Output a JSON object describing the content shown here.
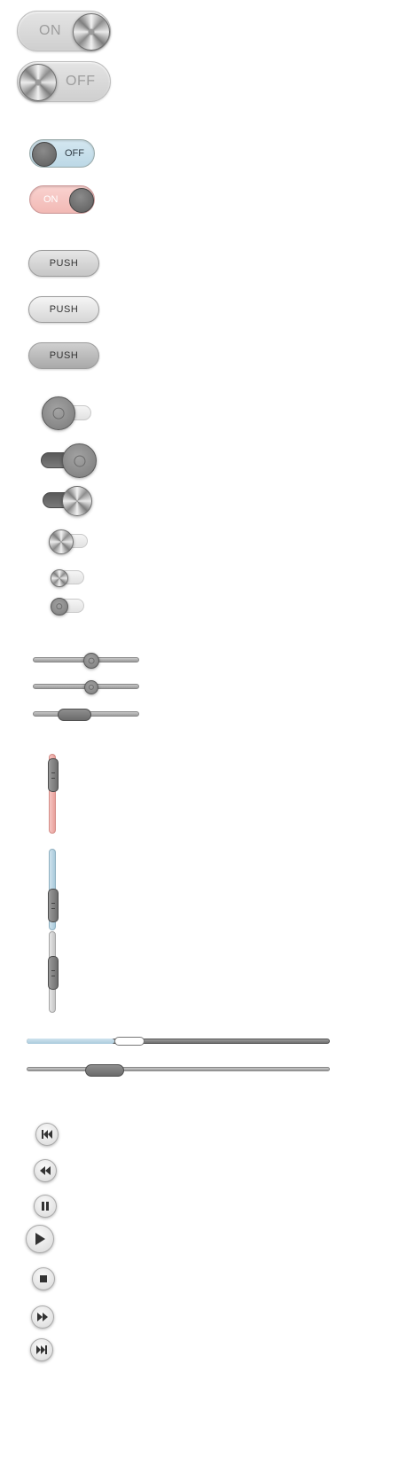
{
  "big_toggles": {
    "on_label": "ON",
    "off_label": "OFF"
  },
  "color_toggles": {
    "off_label": "OFF",
    "on_label": "ON",
    "off_color": "#c9e0ea",
    "on_color": "#f6c4c0"
  },
  "push_buttons": [
    {
      "label": "PUSH"
    },
    {
      "label": "PUSH"
    },
    {
      "label": "PUSH"
    }
  ],
  "colors": {
    "accent_blue": "#bcd8e6",
    "accent_pink": "#f2b9b5"
  },
  "sliders": {
    "horizontal": [
      {
        "kind": "knob",
        "value": 0.55
      },
      {
        "kind": "knob-small",
        "value": 0.55
      },
      {
        "kind": "pill",
        "value": 0.33
      }
    ],
    "vertical": [
      {
        "color": "pink",
        "value": 0.9
      },
      {
        "color": "blue",
        "value": 0.2
      },
      {
        "color": "grey",
        "value": 0.5
      }
    ]
  },
  "progress": {
    "buffer_fraction": 0.29,
    "position_fraction": 0.34,
    "scrub_fraction": 0.22
  },
  "media_controls": [
    {
      "icon": "skip-previous-icon"
    },
    {
      "icon": "rewind-icon"
    },
    {
      "icon": "pause-icon"
    },
    {
      "icon": "play-icon"
    },
    {
      "icon": "stop-icon"
    },
    {
      "icon": "fast-forward-icon"
    },
    {
      "icon": "skip-next-icon"
    }
  ]
}
